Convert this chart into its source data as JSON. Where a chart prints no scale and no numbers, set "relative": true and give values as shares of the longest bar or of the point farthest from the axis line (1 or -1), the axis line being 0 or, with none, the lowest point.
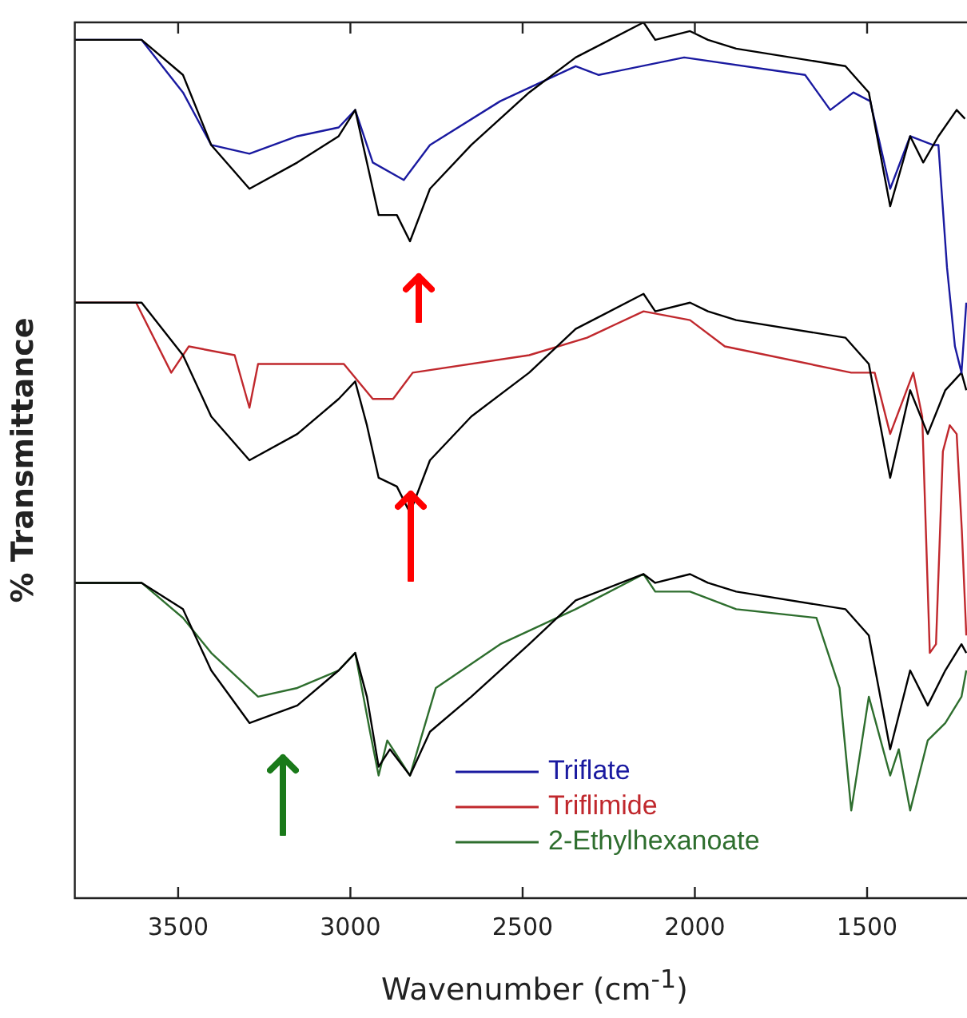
{
  "chart_data": {
    "type": "line",
    "relative": true,
    "xlabel": "Wavenumber (cm$^{-1}$)",
    "ylabel": "% Transmittance",
    "xlim": [
      3800,
      1210
    ],
    "xticks": [
      3500,
      3000,
      2500,
      2000,
      1500
    ],
    "grid": false,
    "legend": "bottom right",
    "series": [
      {
        "color": "#000000",
        "x": [
          3800,
          3606,
          3486,
          3404,
          3293,
          3154,
          3034,
          2986,
          2952,
          2918,
          2865,
          2827,
          2769,
          2649,
          2481,
          2346,
          2149,
          2115,
          2014,
          1962,
          1880,
          1563,
          1495,
          1433,
          1375,
          1337,
          1293,
          1240,
          1216
        ],
        "values": [
          0.98,
          0.98,
          0.94,
          0.86,
          0.81,
          0.84,
          0.87,
          0.9,
          0.84,
          0.78,
          0.78,
          0.75,
          0.81,
          0.86,
          0.92,
          0.96,
          1,
          0.98,
          0.99,
          0.98,
          0.97,
          0.95,
          0.92,
          0.79,
          0.87,
          0.84,
          0.87,
          0.9,
          0.89
        ]
      },
      {
        "name": "Triflate",
        "color": "#1a1aa0",
        "x": [
          3800,
          3606,
          3486,
          3404,
          3293,
          3154,
          3034,
          2986,
          2935,
          2845,
          2769,
          2565,
          2346,
          2279,
          2031,
          1680,
          1607,
          1540,
          1491,
          1433,
          1375,
          1309,
          1293,
          1268,
          1245,
          1226,
          1212
        ],
        "values": [
          0.98,
          0.98,
          0.92,
          0.86,
          0.85,
          0.87,
          0.88,
          0.9,
          0.84,
          0.82,
          0.86,
          0.91,
          0.95,
          0.94,
          0.96,
          0.94,
          0.9,
          0.92,
          0.91,
          0.81,
          0.87,
          0.86,
          0.86,
          0.72,
          0.63,
          0.6,
          0.68
        ]
      },
      {
        "color": "#000000",
        "x": [
          3800,
          3606,
          3486,
          3404,
          3293,
          3154,
          3034,
          2986,
          2952,
          2918,
          2865,
          2827,
          2769,
          2649,
          2481,
          2346,
          2149,
          2115,
          2014,
          1962,
          1880,
          1563,
          1495,
          1433,
          1375,
          1324,
          1273,
          1226,
          1212
        ],
        "values": [
          0.68,
          0.68,
          0.62,
          0.55,
          0.5,
          0.53,
          0.57,
          0.59,
          0.54,
          0.48,
          0.47,
          0.44,
          0.5,
          0.55,
          0.6,
          0.65,
          0.69,
          0.67,
          0.68,
          0.67,
          0.66,
          0.64,
          0.61,
          0.48,
          0.58,
          0.53,
          0.58,
          0.6,
          0.58
        ]
      },
      {
        "name": "Triflimide",
        "color": "#c0282d",
        "x": [
          3800,
          3622,
          3520,
          3469,
          3336,
          3293,
          3268,
          3019,
          2935,
          2876,
          2819,
          2481,
          2313,
          2149,
          2014,
          1913,
          1546,
          1478,
          1433,
          1366,
          1340,
          1318,
          1300,
          1280,
          1260,
          1240,
          1225,
          1212
        ],
        "values": [
          0.68,
          0.68,
          0.6,
          0.63,
          0.62,
          0.56,
          0.61,
          0.61,
          0.57,
          0.57,
          0.6,
          0.62,
          0.64,
          0.67,
          0.66,
          0.63,
          0.6,
          0.6,
          0.53,
          0.6,
          0.55,
          0.28,
          0.29,
          0.51,
          0.54,
          0.53,
          0.42,
          0.3
        ]
      },
      {
        "color": "#000000",
        "x": [
          3800,
          3606,
          3486,
          3404,
          3293,
          3154,
          3034,
          2986,
          2952,
          2918,
          2885,
          2827,
          2769,
          2649,
          2481,
          2346,
          2149,
          2115,
          2014,
          1962,
          1880,
          1563,
          1495,
          1433,
          1375,
          1324,
          1273,
          1226,
          1212
        ],
        "values": [
          0.36,
          0.36,
          0.33,
          0.26,
          0.2,
          0.22,
          0.26,
          0.28,
          0.23,
          0.15,
          0.17,
          0.14,
          0.19,
          0.23,
          0.29,
          0.34,
          0.37,
          0.36,
          0.37,
          0.36,
          0.35,
          0.33,
          0.3,
          0.17,
          0.26,
          0.22,
          0.26,
          0.29,
          0.28
        ]
      },
      {
        "name": "2-Ethylhexanoate",
        "color": "#2e6e2e",
        "x": [
          3800,
          3606,
          3486,
          3404,
          3268,
          3154,
          3034,
          2986,
          2943,
          2918,
          2893,
          2827,
          2752,
          2565,
          2346,
          2149,
          2115,
          2014,
          1880,
          1647,
          1580,
          1546,
          1495,
          1433,
          1408,
          1375,
          1324,
          1273,
          1226,
          1212
        ],
        "values": [
          0.36,
          0.36,
          0.32,
          0.28,
          0.23,
          0.24,
          0.26,
          0.28,
          0.19,
          0.14,
          0.18,
          0.14,
          0.24,
          0.29,
          0.33,
          0.37,
          0.35,
          0.35,
          0.33,
          0.32,
          0.24,
          0.1,
          0.23,
          0.14,
          0.17,
          0.1,
          0.18,
          0.2,
          0.23,
          0.26
        ]
      }
    ]
  }
}
